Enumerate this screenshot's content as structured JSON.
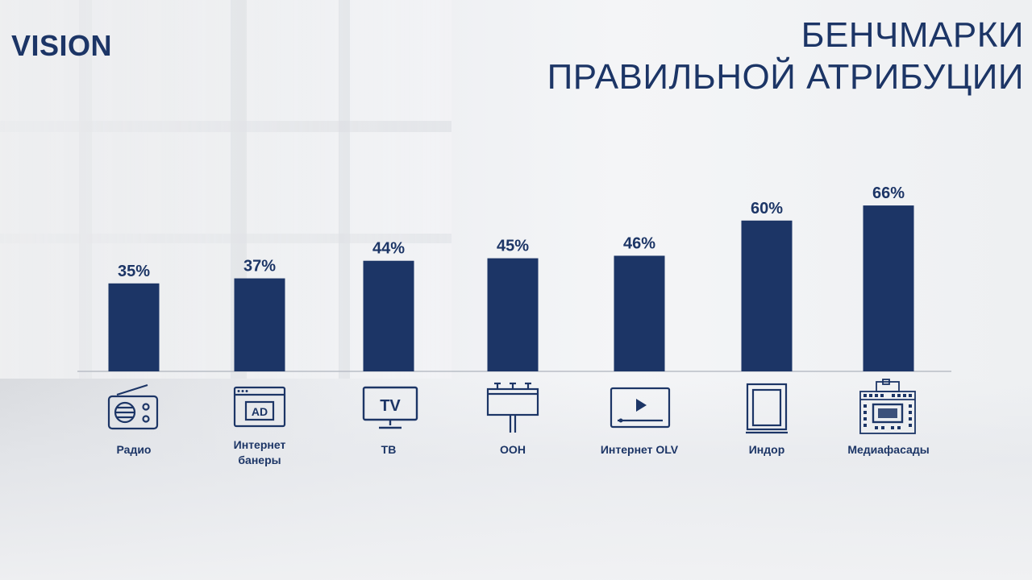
{
  "header": {
    "logo": "VISION",
    "title_line1": "БЕНЧМАРКИ",
    "title_line2": "ПРАВИЛЬНОЙ АТРИБУЦИИ"
  },
  "colors": {
    "bar": "#1c3566",
    "text": "#1c3566",
    "baseline": "#b9bec6"
  },
  "chart_data": {
    "type": "bar",
    "categories": [
      "Радио",
      "Интернет банеры",
      "ТВ",
      "OOH",
      "Интернет OLV",
      "Индор",
      "Медиафасады"
    ],
    "values": [
      35,
      37,
      44,
      45,
      46,
      60,
      66
    ],
    "value_labels": [
      "35%",
      "37%",
      "44%",
      "45%",
      "46%",
      "60%",
      "66%"
    ],
    "title": "",
    "xlabel": "",
    "ylabel": "",
    "ylim": [
      0,
      100
    ],
    "grid": false,
    "legend": "none"
  },
  "icons": [
    "radio-icon",
    "ad-banner-icon",
    "tv-icon",
    "billboard-icon",
    "video-player-icon",
    "door-frame-icon",
    "building-screen-icon"
  ],
  "icon_text": {
    "ad": "AD",
    "tv": "TV"
  }
}
